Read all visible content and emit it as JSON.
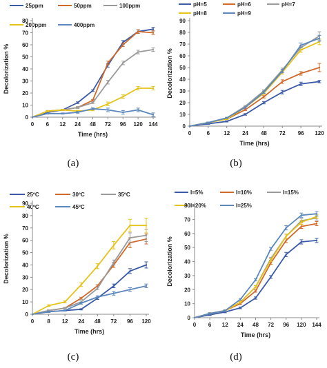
{
  "chart_data": [
    {
      "type": "line",
      "caption": "(a)",
      "xlabel": "Time (hrs)",
      "ylabel": "Decolorization %",
      "categories": [
        "0",
        "6",
        "12",
        "24",
        "48",
        "72",
        "96",
        "120",
        "144"
      ],
      "ylim": [
        0,
        80
      ],
      "yticks": [
        0,
        10,
        20,
        30,
        40,
        50,
        60,
        70,
        80
      ],
      "grid": false,
      "legend": "top",
      "series": [
        {
          "name": "25ppm",
          "color": "#3a5aa8",
          "values": [
            0,
            4,
            6,
            12,
            22,
            43,
            62,
            71,
            73
          ],
          "err": [
            0,
            0.5,
            0.5,
            0.7,
            0.7,
            1.5,
            1.5,
            1.5,
            1.5
          ]
        },
        {
          "name": "50ppm",
          "color": "#d06a2a",
          "values": [
            0,
            5,
            6,
            8,
            14,
            45,
            60,
            71,
            70
          ],
          "err": [
            0,
            0.5,
            0.5,
            0.7,
            0.7,
            1.5,
            1.5,
            1.5,
            1.5
          ]
        },
        {
          "name": "100ppm",
          "color": "#9a9a9a",
          "values": [
            0,
            5,
            6,
            8,
            12,
            29,
            45,
            54,
            56
          ],
          "err": [
            0,
            0.5,
            0.5,
            0.7,
            0.7,
            1.5,
            1.5,
            1.5,
            1.5
          ]
        },
        {
          "name": "200ppm",
          "color": "#e5c31a",
          "values": [
            0,
            5,
            6,
            5,
            6,
            11,
            17,
            24,
            24
          ],
          "err": [
            0,
            0.5,
            0.5,
            0.7,
            0.7,
            1.5,
            1.5,
            1.5,
            1.5
          ]
        },
        {
          "name": "400ppm",
          "color": "#5b87bd",
          "values": [
            0,
            3,
            3,
            4,
            7,
            6,
            4,
            6,
            2
          ],
          "err": [
            0,
            0.5,
            0.5,
            0.7,
            0.7,
            1.5,
            1.5,
            1.5,
            1.5
          ]
        }
      ]
    },
    {
      "type": "line",
      "caption": "(b)",
      "xlabel": "Time (hrs)",
      "ylabel": "Decolorization %",
      "categories": [
        "0",
        "6",
        "12",
        "24",
        "48",
        "72",
        "96",
        "120"
      ],
      "ylim": [
        0,
        90
      ],
      "yticks": [
        0,
        10,
        20,
        30,
        40,
        50,
        60,
        70,
        80,
        90
      ],
      "grid": false,
      "legend": "top",
      "series": [
        {
          "name": "pH=5",
          "color": "#3a5aa8",
          "values": [
            0,
            2,
            4,
            10,
            20,
            29,
            36,
            38
          ],
          "err": [
            0,
            0.5,
            0.5,
            0.7,
            1,
            1.5,
            1.5,
            1
          ]
        },
        {
          "name": "pH=6",
          "color": "#d06a2a",
          "values": [
            0,
            3,
            6,
            14,
            25,
            38,
            45,
            50
          ],
          "err": [
            0,
            0.5,
            0.5,
            0.7,
            1,
            1.5,
            1.5,
            3.5
          ]
        },
        {
          "name": "pH=7",
          "color": "#9a9a9a",
          "values": [
            0,
            3,
            7,
            17,
            30,
            48,
            67,
            77
          ],
          "err": [
            0,
            0.5,
            0.5,
            0.7,
            1,
            1.5,
            2,
            3.5
          ]
        },
        {
          "name": "pH=8",
          "color": "#e5c31a",
          "values": [
            0,
            3,
            6,
            16,
            28,
            46,
            65,
            72
          ],
          "err": [
            0,
            0.5,
            0.5,
            0.7,
            1,
            1.5,
            2,
            2.5
          ]
        },
        {
          "name": "pH=9",
          "color": "#5b87bd",
          "values": [
            0,
            3,
            7,
            16,
            29,
            47,
            69,
            75
          ],
          "err": [
            0,
            0.5,
            0.5,
            0.7,
            1,
            1.5,
            2,
            2.5
          ]
        }
      ]
    },
    {
      "type": "line",
      "caption": "(c)",
      "xlabel": "Time (hrs)",
      "ylabel": "Decolorization %",
      "categories": [
        "0",
        "8",
        "12",
        "24",
        "48",
        "72",
        "96",
        "120"
      ],
      "ylim": [
        0,
        90
      ],
      "yticks": [
        0,
        10,
        20,
        30,
        40,
        50,
        60,
        70,
        80,
        90
      ],
      "grid": false,
      "legend": "top",
      "series": [
        {
          "name": "25ºC",
          "color": "#3a5aa8",
          "values": [
            0,
            2,
            3,
            4,
            13,
            23,
            35,
            40
          ],
          "err": [
            0,
            0.5,
            0.5,
            0.5,
            1,
            1.5,
            2,
            2.5
          ]
        },
        {
          "name": "30ºC",
          "color": "#d06a2a",
          "values": [
            0,
            3,
            5,
            13,
            23,
            40,
            58,
            61
          ],
          "err": [
            0,
            0.5,
            0.5,
            0.8,
            1,
            2,
            4,
            4
          ]
        },
        {
          "name": "35ºC",
          "color": "#9a9a9a",
          "values": [
            0,
            3,
            5,
            10,
            21,
            42,
            62,
            64
          ],
          "err": [
            0,
            0.5,
            0.5,
            0.8,
            1,
            2,
            4,
            5
          ]
        },
        {
          "name": "40ºC",
          "color": "#e5c31a",
          "values": [
            0,
            7,
            10,
            24,
            39,
            56,
            72,
            72
          ],
          "err": [
            0,
            0.7,
            0.8,
            1.5,
            2,
            3,
            5,
            6
          ]
        },
        {
          "name": "45ºC",
          "color": "#5b87bd",
          "values": [
            0,
            2,
            3,
            9,
            14,
            17,
            20,
            23
          ],
          "err": [
            0,
            0.5,
            0.5,
            0.8,
            1,
            1.5,
            1.5,
            1.5
          ]
        }
      ]
    },
    {
      "type": "line",
      "caption": "(d)",
      "xlabel": "Time (hrs)",
      "ylabel": "Decolorization %",
      "categories": [
        "0",
        "6",
        "12",
        "24",
        "48",
        "72",
        "96",
        "120",
        "144"
      ],
      "ylim": [
        0,
        80
      ],
      "yticks": [
        0,
        10,
        20,
        30,
        40,
        50,
        60,
        70,
        80
      ],
      "grid": false,
      "legend": "top",
      "series": [
        {
          "name": "I=5%",
          "color": "#3a5aa8",
          "values": [
            0,
            2,
            4,
            7,
            14,
            29,
            45,
            54,
            55
          ],
          "err": [
            0,
            0.5,
            0.5,
            0.6,
            0.8,
            1,
            1.5,
            1.5,
            1.5
          ]
        },
        {
          "name": "I=10%",
          "color": "#d06a2a",
          "values": [
            0,
            3,
            5,
            10,
            19,
            39,
            55,
            65,
            67
          ],
          "err": [
            0,
            0.5,
            0.5,
            0.6,
            0.8,
            1,
            1.5,
            1.5,
            1.5
          ]
        },
        {
          "name": "I=15%",
          "color": "#9a9a9a",
          "values": [
            0,
            3,
            5,
            11,
            22,
            42,
            58,
            69,
            71
          ],
          "err": [
            0,
            0.5,
            0.5,
            0.6,
            0.8,
            1,
            1.5,
            1.5,
            1.5
          ]
        },
        {
          "name": "I=20%",
          "color": "#e5c31a",
          "values": [
            0,
            3,
            5,
            11,
            22,
            41,
            58,
            68,
            72
          ],
          "err": [
            0,
            0.5,
            0.5,
            0.6,
            0.8,
            1,
            1.5,
            1.5,
            1.5
          ]
        },
        {
          "name": "I=25%",
          "color": "#5b87bd",
          "values": [
            0,
            3,
            5,
            13,
            27,
            49,
            64,
            73,
            74
          ],
          "err": [
            0,
            0.5,
            0.5,
            0.6,
            0.8,
            1,
            1.5,
            1.5,
            1.5
          ]
        }
      ]
    }
  ]
}
